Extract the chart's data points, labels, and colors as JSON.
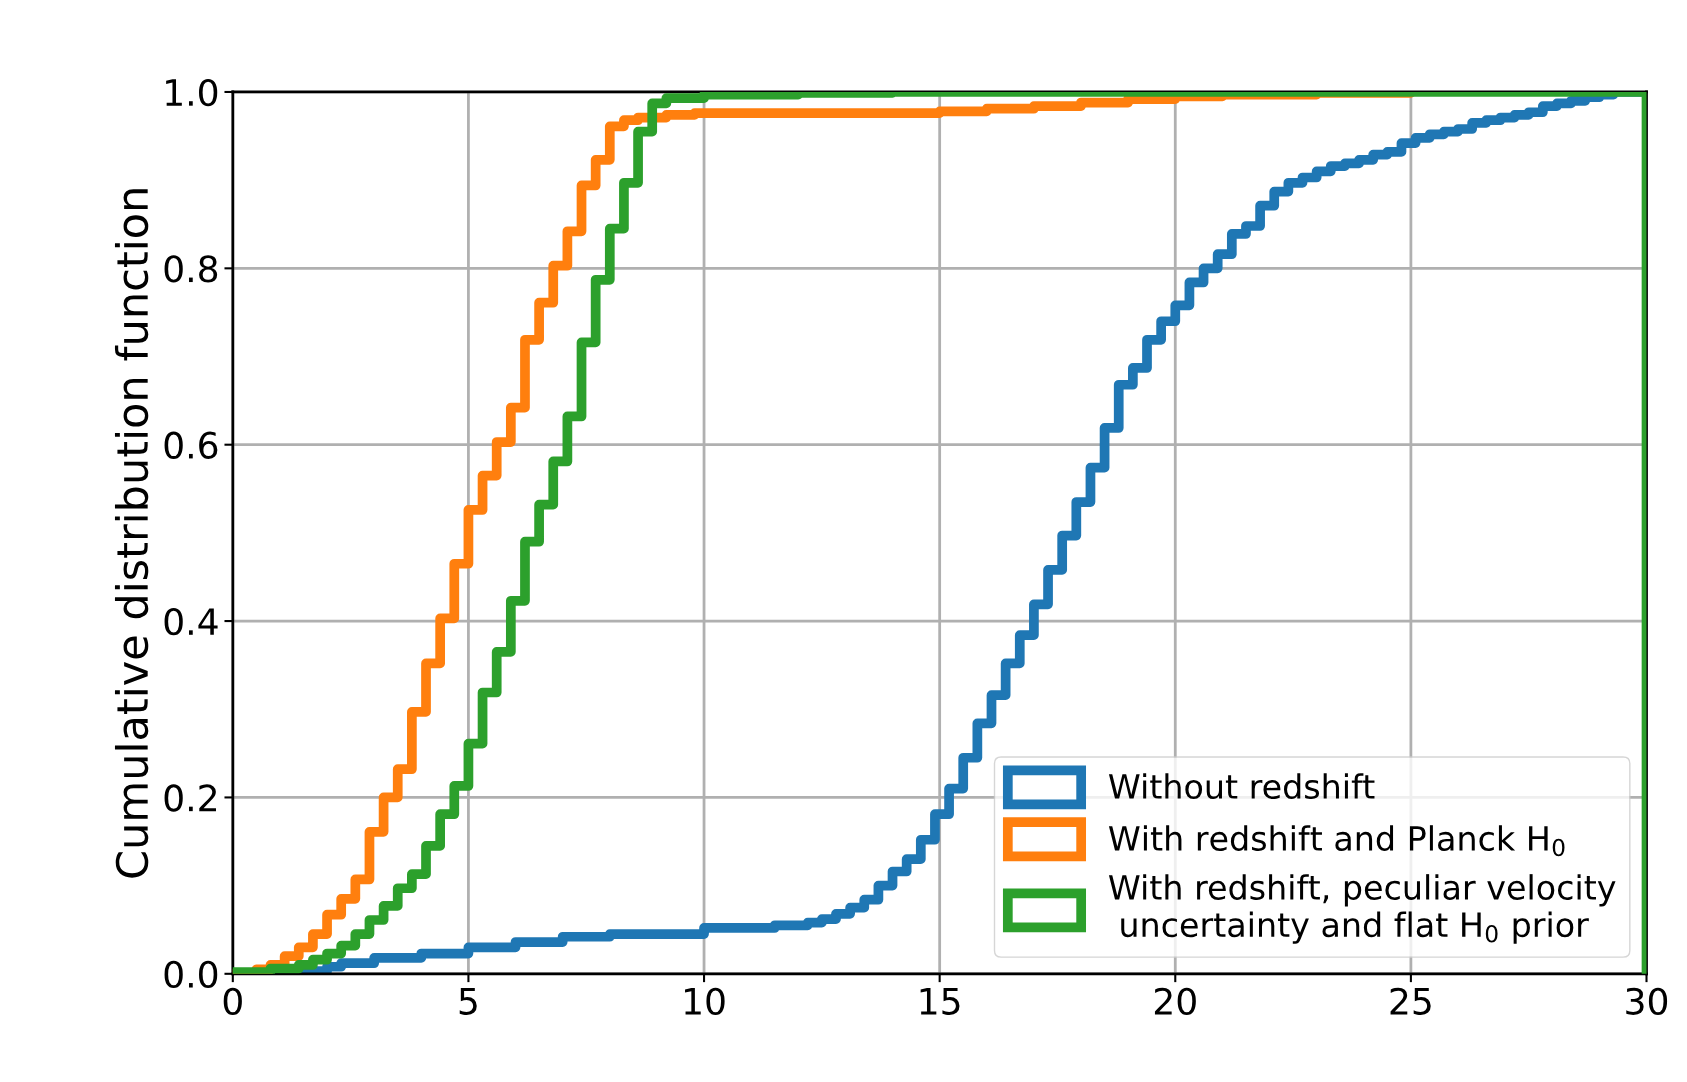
{
  "chart_data": {
    "type": "step",
    "ylabel": "Cumulative distribution function",
    "xlim": [
      0,
      30
    ],
    "xticks": [
      0,
      5,
      10,
      15,
      20,
      25,
      30
    ],
    "ylim": [
      0,
      1.0
    ],
    "yticks": [
      {
        "value": 0,
        "label": "0.0"
      },
      0.2,
      0.4,
      0.6,
      0.8,
      {
        "value": 1,
        "label": "1.0"
      }
    ],
    "grid": true,
    "legend": "bottom right",
    "series": [
      {
        "name": "Without redshift",
        "color": "#1f77b4",
        "x": [
          0,
          1.7,
          2.0,
          2.3,
          3.0,
          4.0,
          5.0,
          6.0,
          7.0,
          8.0,
          10.0,
          11.5,
          12.2,
          12.5,
          12.8,
          13.1,
          13.4,
          13.7,
          14.0,
          14.3,
          14.6,
          14.9,
          15.2,
          15.5,
          15.8,
          16.1,
          16.4,
          16.7,
          17.0,
          17.3,
          17.6,
          17.9,
          18.2,
          18.5,
          18.8,
          19.1,
          19.4,
          19.7,
          20.0,
          20.3,
          20.6,
          20.9,
          21.2,
          21.5,
          21.8,
          22.1,
          22.4,
          22.7,
          23.0,
          23.3,
          23.6,
          23.9,
          24.2,
          24.5,
          24.8,
          25.1,
          25.4,
          25.7,
          26.0,
          26.3,
          26.6,
          26.9,
          27.2,
          27.5,
          27.8,
          28.1,
          28.4,
          28.7,
          29.0,
          29.3,
          30
        ],
        "values": [
          0,
          0.003,
          0.008,
          0.012,
          0.018,
          0.023,
          0.03,
          0.036,
          0.042,
          0.045,
          0.052,
          0.055,
          0.058,
          0.062,
          0.068,
          0.075,
          0.084,
          0.1,
          0.116,
          0.13,
          0.152,
          0.181,
          0.21,
          0.245,
          0.284,
          0.316,
          0.352,
          0.384,
          0.419,
          0.458,
          0.497,
          0.535,
          0.574,
          0.619,
          0.668,
          0.687,
          0.719,
          0.74,
          0.758,
          0.784,
          0.8,
          0.816,
          0.839,
          0.848,
          0.871,
          0.887,
          0.897,
          0.903,
          0.91,
          0.916,
          0.919,
          0.923,
          0.929,
          0.932,
          0.942,
          0.948,
          0.952,
          0.955,
          0.958,
          0.965,
          0.968,
          0.971,
          0.974,
          0.977,
          0.984,
          0.987,
          0.99,
          0.994,
          0.997,
          1.0,
          1.0
        ]
      },
      {
        "name": "With redshift and Planck H$_{0}$",
        "color": "#ff7f0e",
        "x": [
          0,
          0.5,
          0.8,
          1.1,
          1.4,
          1.7,
          2.0,
          2.3,
          2.6,
          2.9,
          3.2,
          3.5,
          3.8,
          4.1,
          4.4,
          4.7,
          5.0,
          5.3,
          5.6,
          5.9,
          6.2,
          6.5,
          6.8,
          7.1,
          7.4,
          7.7,
          8.0,
          8.3,
          8.6,
          9.2,
          9.8,
          15.0,
          16.0,
          17.0,
          18.0,
          19.0,
          20.0,
          21.0,
          23.0,
          25.0
        ],
        "values": [
          0,
          0.005,
          0.01,
          0.02,
          0.03,
          0.045,
          0.067,
          0.085,
          0.107,
          0.161,
          0.2,
          0.232,
          0.297,
          0.352,
          0.403,
          0.465,
          0.526,
          0.565,
          0.603,
          0.642,
          0.719,
          0.761,
          0.803,
          0.842,
          0.894,
          0.923,
          0.961,
          0.968,
          0.971,
          0.974,
          0.976,
          0.978,
          0.981,
          0.984,
          0.988,
          0.992,
          0.995,
          0.997,
          0.999,
          1.0
        ]
      },
      {
        "name": "With redshift, peculiar velocity\n uncertainty and flat H$_{0}$ prior",
        "color": "#2ca02c",
        "x": [
          0,
          0.8,
          1.4,
          1.7,
          2.0,
          2.3,
          2.6,
          2.9,
          3.2,
          3.5,
          3.8,
          4.1,
          4.4,
          4.7,
          5.0,
          5.3,
          5.6,
          5.9,
          6.2,
          6.5,
          6.8,
          7.1,
          7.4,
          7.7,
          8.0,
          8.3,
          8.6,
          8.9,
          9.2,
          10.0,
          12.0,
          14.0,
          30,
          30
        ],
        "values": [
          0.002,
          0.006,
          0.01,
          0.016,
          0.023,
          0.032,
          0.045,
          0.061,
          0.077,
          0.097,
          0.113,
          0.145,
          0.181,
          0.213,
          0.261,
          0.319,
          0.365,
          0.423,
          0.49,
          0.532,
          0.581,
          0.632,
          0.716,
          0.787,
          0.845,
          0.897,
          0.955,
          0.987,
          0.993,
          0.997,
          0.999,
          1.0,
          1.0,
          0
        ]
      }
    ]
  }
}
